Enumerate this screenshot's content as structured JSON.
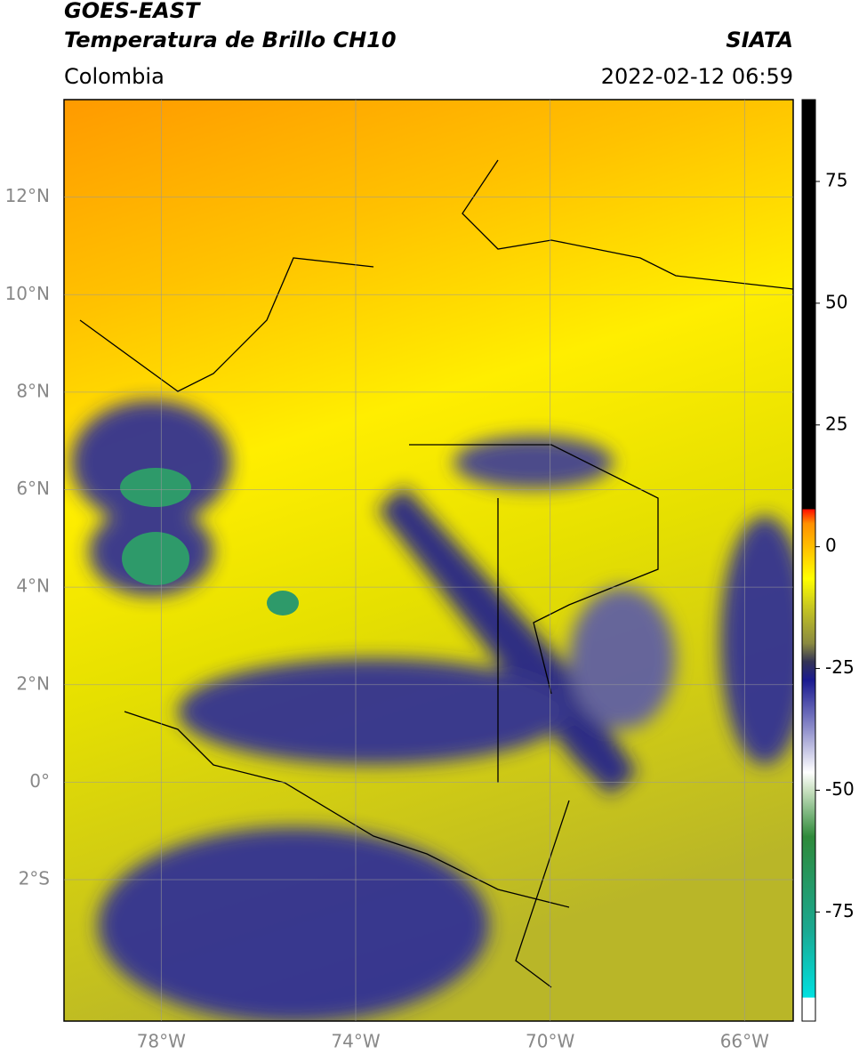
{
  "header": {
    "title": "GOES-EAST",
    "subtitle": "Temperatura de Brillo CH10",
    "region": "Colombia",
    "source": "SIATA",
    "datetime": "2022-02-12 06:59"
  },
  "map": {
    "xlim": [
      -80,
      -65
    ],
    "ylim": [
      -4.9,
      14
    ],
    "xticks": [
      {
        "value": -78,
        "label": "78°W"
      },
      {
        "value": -74,
        "label": "74°W"
      },
      {
        "value": -70,
        "label": "70°W"
      },
      {
        "value": -66,
        "label": "66°W"
      }
    ],
    "yticks": [
      {
        "value": 12,
        "label": "12°N"
      },
      {
        "value": 10,
        "label": "10°N"
      },
      {
        "value": 8,
        "label": "8°N"
      },
      {
        "value": 6,
        "label": "6°N"
      },
      {
        "value": 4,
        "label": "4°N"
      },
      {
        "value": 2,
        "label": "2°N"
      },
      {
        "value": 0,
        "label": "0°"
      },
      {
        "value": -2,
        "label": "2°S"
      }
    ],
    "grid": true
  },
  "colorbar": {
    "lim": [
      -97.4,
      91.8
    ],
    "ticks": [
      75,
      50,
      25,
      0,
      -25,
      -50,
      -75
    ]
  }
}
